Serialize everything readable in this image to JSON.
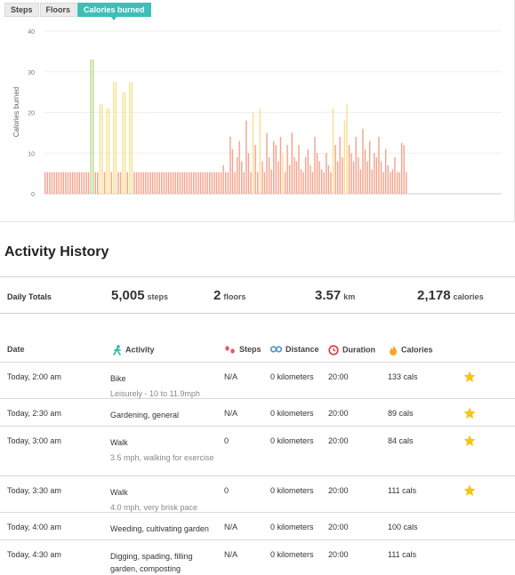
{
  "tabs": [
    {
      "label": "Steps",
      "active": false
    },
    {
      "label": "Floors",
      "active": false
    },
    {
      "label": "Calories burned",
      "active": true
    }
  ],
  "chart_data": {
    "type": "bar",
    "ylabel": "Calories burned",
    "ylim": [
      0,
      40
    ],
    "yticks": [
      "0",
      "10",
      "20",
      "30",
      "40"
    ],
    "grid": true,
    "colors": {
      "base": "#f4a28c",
      "green": "#b5d98a",
      "yellow": "#f8e08c",
      "base_outline": "#e97f66"
    },
    "values": [
      5.3,
      5.3,
      5.3,
      5.3,
      5.3,
      5.3,
      5.3,
      5.3,
      5.3,
      5.3,
      5.3,
      5.3,
      5.3,
      5.3,
      5.3,
      5.3,
      5.3,
      5.3,
      5.3,
      5.3,
      33,
      33,
      5.3,
      5.3,
      22,
      22,
      5.3,
      21,
      21,
      5.3,
      27.5,
      27.5,
      5.3,
      5.3,
      25,
      25,
      5.3,
      27.5,
      27.5,
      5.3,
      5.3,
      5.3,
      5.3,
      5.3,
      5.3,
      5.3,
      5.3,
      5.3,
      5.3,
      5.3,
      5.3,
      5.3,
      5.3,
      5.3,
      5.3,
      5.3,
      5.3,
      5.3,
      5.3,
      5.3,
      5.3,
      5.3,
      5.3,
      5.3,
      5.3,
      5.3,
      5.3,
      5.3,
      5.3,
      5.3,
      5.3,
      5.3,
      5.3,
      5.3,
      5.3,
      5.3,
      5.3,
      5.3,
      7,
      5.3,
      5.3,
      14,
      11,
      5.3,
      9,
      13,
      8,
      5.3,
      18,
      10,
      5.3,
      20,
      12,
      5.3,
      21,
      8,
      5.3,
      15,
      9,
      6,
      13,
      12,
      8,
      14,
      10,
      5.3,
      12,
      7,
      15,
      9,
      8,
      12,
      6,
      5.3,
      9,
      11,
      7,
      5.3,
      14,
      10,
      8,
      6,
      5.3,
      10,
      7,
      5.3,
      21,
      12,
      8,
      14,
      9,
      18,
      22,
      12,
      10,
      8,
      14,
      9,
      6,
      16,
      11,
      8,
      13,
      6,
      10,
      9,
      14,
      8,
      5.3,
      11,
      7,
      5.3,
      6,
      9,
      5.3,
      5.3,
      12.5,
      12,
      5.3,
      0,
      0,
      0,
      0,
      0,
      0,
      0,
      0,
      0,
      0,
      0,
      0,
      0,
      0,
      0,
      0,
      0,
      0,
      0,
      0,
      0,
      0,
      0,
      0,
      0,
      0,
      0,
      0,
      0,
      0,
      0,
      0,
      0,
      0,
      0,
      0,
      0,
      0,
      0,
      0,
      0
    ],
    "bar_colors": {
      "green": [
        20,
        21
      ],
      "yellow": [
        24,
        25,
        27,
        28,
        30,
        31,
        34,
        35,
        37,
        38,
        91,
        94,
        104,
        126,
        131,
        132
      ]
    }
  },
  "history": {
    "title": "Activity History",
    "totals_label": "Daily Totals",
    "totals": [
      {
        "value": "5,005",
        "unit": "steps"
      },
      {
        "value": "2",
        "unit": "floors"
      },
      {
        "value": "3.57",
        "unit": "km"
      },
      {
        "value": "2,178",
        "unit": "calories"
      }
    ],
    "headers": {
      "date": "Date",
      "activity": "Activity",
      "steps": "Steps",
      "distance": "Distance",
      "duration": "Duration",
      "calories": "Calories"
    },
    "rows": [
      {
        "date": "Today, 2:00 am",
        "activity": "Bike",
        "detail": "Leisurely - 10 to 11.9mph",
        "steps": "N/A",
        "distance": "0 kilometers",
        "duration": "20:00",
        "calories": "133 cals",
        "star": true
      },
      {
        "date": "Today, 2:30 am",
        "activity": "Gardening, general",
        "detail": "",
        "steps": "N/A",
        "distance": "0 kilometers",
        "duration": "20:00",
        "calories": "89 cals",
        "star": true
      },
      {
        "date": "Today, 3:00 am",
        "activity": "Walk",
        "detail": "3.5 mph, walking for exercise",
        "steps": "0",
        "distance": "0 kilometers",
        "duration": "20:00",
        "calories": "84 cals",
        "star": true
      },
      {
        "date": "Today, 3:30 am",
        "activity": "Walk",
        "detail": "4.0 mph, very brisk pace",
        "steps": "0",
        "distance": "0 kilometers",
        "duration": "20:00",
        "calories": "111 cals",
        "star": true
      },
      {
        "date": "Today, 4:00 am",
        "activity": "Weeding, cultivating garden",
        "detail": "",
        "steps": "N/A",
        "distance": "0 kilometers",
        "duration": "20:00",
        "calories": "100 cals",
        "star": false
      },
      {
        "date": "Today, 4:30 am",
        "activity": "Digging, spading, filling garden, composting",
        "detail": "",
        "steps": "N/A",
        "distance": "0 kilometers",
        "duration": "20:00",
        "calories": "111 cals",
        "star": false
      }
    ],
    "icon_colors": {
      "activity": "#2fb9a7",
      "steps": "#e05a6b",
      "distance": "#4a90c8",
      "duration": "#d9363e",
      "calories": "#f5a623",
      "star": "#f5c518"
    }
  }
}
